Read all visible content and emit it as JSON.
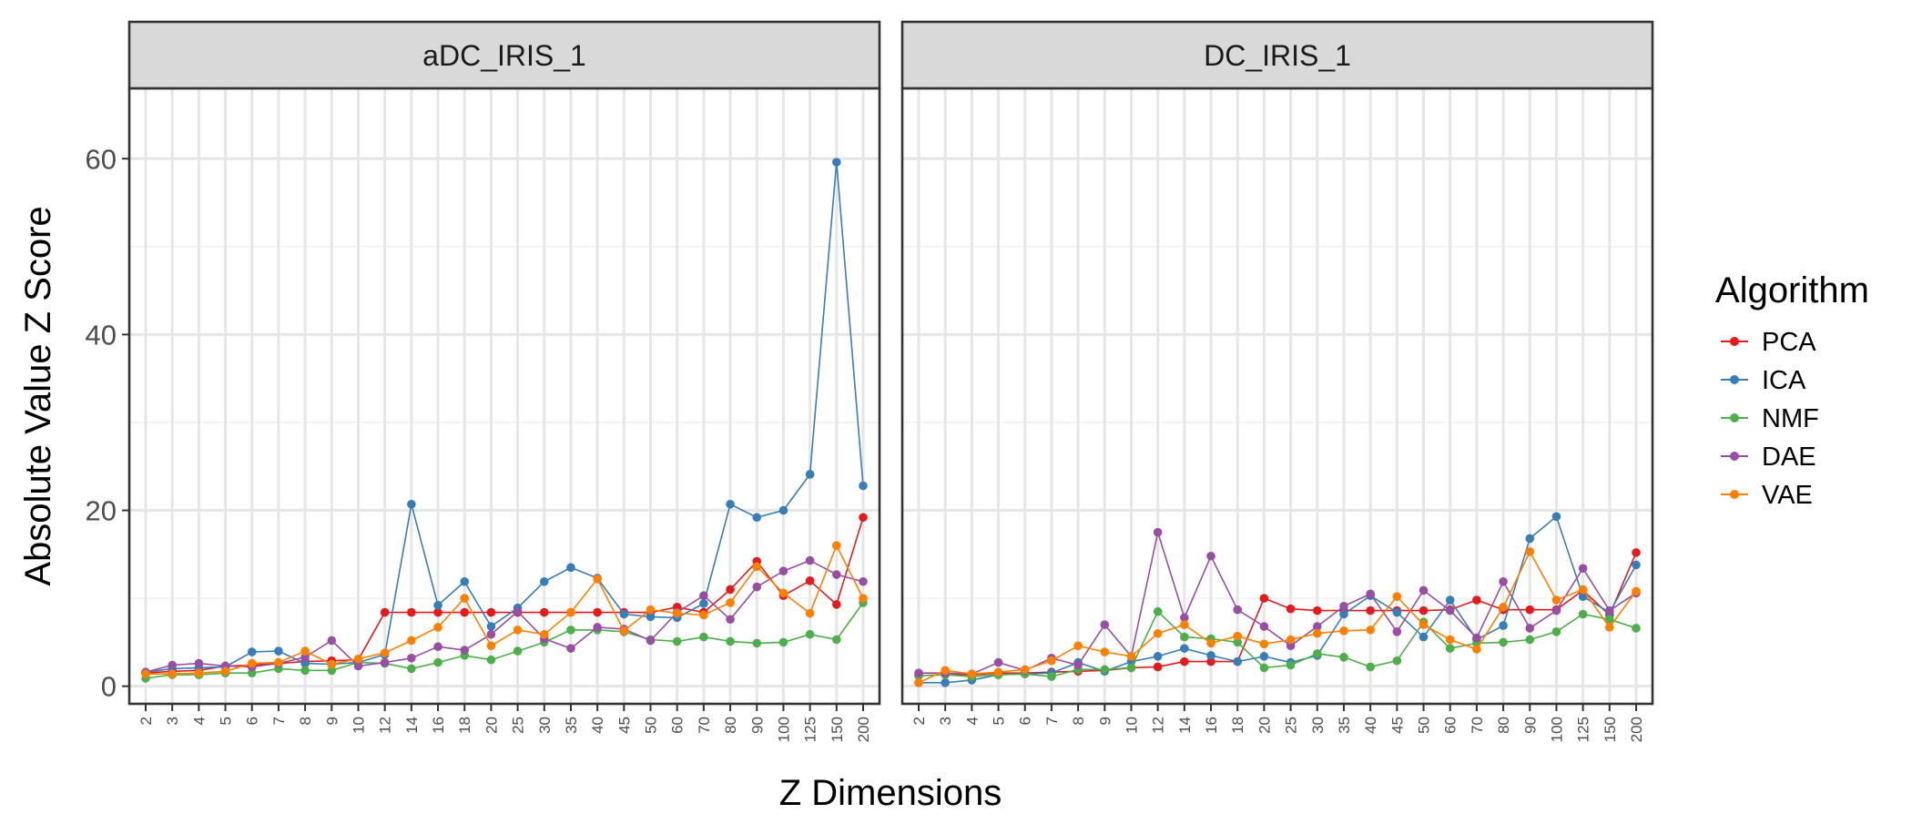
{
  "chart_data": {
    "type": "line",
    "facet_variable": "panel",
    "panels": [
      "aDC_IRIS_1",
      "DC_IRIS_1"
    ],
    "categories": [
      "2",
      "3",
      "4",
      "5",
      "6",
      "7",
      "8",
      "9",
      "10",
      "12",
      "14",
      "16",
      "18",
      "20",
      "25",
      "30",
      "35",
      "40",
      "45",
      "50",
      "60",
      "70",
      "80",
      "90",
      "100",
      "125",
      "150",
      "200"
    ],
    "xlabel": "Z Dimensions",
    "ylabel": "Absolute Value Z Score",
    "ylim": [
      -2,
      68
    ],
    "yticks": [
      0,
      20,
      40,
      60
    ],
    "grid": true,
    "legend": {
      "title": "Algorithm",
      "position": "right"
    },
    "series": [
      {
        "name": "PCA",
        "color": "#E41A1C",
        "values": {
          "aDC_IRIS_1": [
            1.5,
            1.7,
            1.8,
            2.3,
            2.4,
            2.6,
            2.8,
            2.9,
            3.0,
            8.4,
            8.4,
            8.4,
            8.4,
            8.4,
            8.4,
            8.4,
            8.4,
            8.4,
            8.4,
            8.4,
            9.0,
            8.4,
            11.0,
            14.2,
            10.3,
            12.0,
            9.3,
            19.2
          ],
          "DC_IRIS_1": [
            1.2,
            1.3,
            1.3,
            1.5,
            1.5,
            1.6,
            1.7,
            1.8,
            2.1,
            2.2,
            2.8,
            2.8,
            2.8,
            10.0,
            8.8,
            8.6,
            8.6,
            8.6,
            8.6,
            8.6,
            8.7,
            9.8,
            8.7,
            8.7,
            8.7,
            10.9,
            8.1,
            15.2
          ]
        }
      },
      {
        "name": "ICA",
        "color": "#377EB8",
        "values": {
          "aDC_IRIS_1": [
            1.6,
            2.0,
            2.1,
            2.2,
            3.9,
            4.0,
            2.6,
            2.5,
            2.7,
            3.6,
            20.7,
            9.2,
            11.9,
            6.8,
            8.9,
            11.9,
            13.5,
            12.3,
            8.2,
            7.9,
            7.8,
            9.4,
            20.7,
            19.2,
            20.0,
            24.1,
            59.6,
            22.8
          ],
          "DC_IRIS_1": [
            0.4,
            0.4,
            0.7,
            1.3,
            1.4,
            1.5,
            2.7,
            1.7,
            2.8,
            3.4,
            4.3,
            3.5,
            2.8,
            3.4,
            2.7,
            3.5,
            8.2,
            10.3,
            8.4,
            5.6,
            9.8,
            5.3,
            6.9,
            16.8,
            19.3,
            10.2,
            8.4,
            13.8
          ]
        }
      },
      {
        "name": "NMF",
        "color": "#4DAF4A",
        "values": {
          "aDC_IRIS_1": [
            0.9,
            1.3,
            1.3,
            1.5,
            1.5,
            2.0,
            1.8,
            1.8,
            2.7,
            2.6,
            2.0,
            2.7,
            3.5,
            3.0,
            4.0,
            5.0,
            6.4,
            6.4,
            6.2,
            5.3,
            5.1,
            5.6,
            5.1,
            4.9,
            5.0,
            5.9,
            5.3,
            9.5
          ],
          "DC_IRIS_1": [
            1.2,
            1.3,
            1.1,
            1.3,
            1.4,
            1.1,
            1.9,
            1.9,
            2.1,
            8.5,
            5.6,
            5.4,
            5.0,
            2.1,
            2.4,
            3.7,
            3.3,
            2.2,
            2.9,
            7.3,
            4.3,
            4.9,
            5.0,
            5.3,
            6.2,
            8.2,
            7.6,
            6.6
          ]
        }
      },
      {
        "name": "DAE",
        "color": "#984EA3",
        "values": {
          "aDC_IRIS_1": [
            1.6,
            2.4,
            2.6,
            2.3,
            2.2,
            2.6,
            3.3,
            5.2,
            2.3,
            2.7,
            3.2,
            4.5,
            4.1,
            5.9,
            8.5,
            5.4,
            4.3,
            6.7,
            6.5,
            5.2,
            8.4,
            10.3,
            7.6,
            11.3,
            13.1,
            14.3,
            12.7,
            11.9
          ],
          "DC_IRIS_1": [
            1.5,
            1.5,
            1.4,
            2.7,
            1.8,
            3.2,
            2.4,
            7.0,
            3.4,
            17.5,
            7.8,
            14.8,
            8.7,
            6.8,
            4.6,
            6.8,
            9.1,
            10.5,
            6.2,
            10.9,
            8.6,
            5.5,
            11.9,
            6.6,
            8.6,
            13.4,
            8.6,
            10.6
          ]
        }
      },
      {
        "name": "VAE",
        "color": "#FF7F00",
        "values": {
          "aDC_IRIS_1": [
            1.4,
            1.4,
            1.5,
            1.7,
            2.6,
            2.7,
            4.0,
            2.5,
            3.1,
            3.8,
            5.2,
            6.7,
            10.0,
            4.6,
            6.4,
            5.9,
            8.4,
            12.2,
            6.3,
            8.7,
            8.3,
            8.1,
            9.5,
            13.6,
            10.6,
            8.3,
            16.0,
            10.0
          ],
          "DC_IRIS_1": [
            0.4,
            1.8,
            1.4,
            1.6,
            1.9,
            2.9,
            4.6,
            3.9,
            3.4,
            6.0,
            7.0,
            4.9,
            5.7,
            4.8,
            5.3,
            6.0,
            6.3,
            6.4,
            10.2,
            7.0,
            5.3,
            4.2,
            9.0,
            15.3,
            9.8,
            11.0,
            6.7,
            10.8
          ]
        }
      }
    ]
  }
}
